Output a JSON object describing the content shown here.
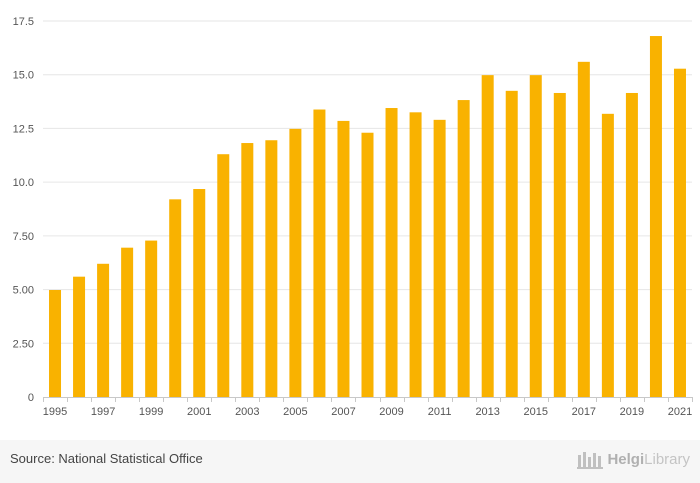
{
  "chart_data": {
    "type": "bar",
    "title": "",
    "xlabel": "",
    "ylabel": "",
    "ylim": [
      0,
      17.5
    ],
    "yticks": [
      "0",
      "2.50",
      "5.00",
      "7.50",
      "10.0",
      "12.5",
      "15.0",
      "17.5"
    ],
    "ytick_values": [
      0,
      2.5,
      5,
      7.5,
      10,
      12.5,
      15,
      17.5
    ],
    "categories": [
      "1995",
      "1996",
      "1997",
      "1998",
      "1999",
      "2000",
      "2001",
      "2002",
      "2003",
      "2004",
      "2005",
      "2006",
      "2007",
      "2008",
      "2009",
      "2010",
      "2011",
      "2012",
      "2013",
      "2014",
      "2015",
      "2016",
      "2017",
      "2018",
      "2019",
      "2020",
      "2021"
    ],
    "xtick_labels": [
      "1995",
      "1997",
      "1999",
      "2001",
      "2003",
      "2005",
      "2007",
      "2009",
      "2011",
      "2013",
      "2015",
      "2017",
      "2019",
      "2021"
    ],
    "values": [
      4.98,
      5.6,
      6.2,
      6.95,
      7.28,
      9.2,
      9.68,
      11.3,
      11.82,
      11.95,
      12.48,
      13.38,
      12.85,
      12.3,
      13.45,
      13.25,
      12.9,
      13.82,
      14.98,
      14.25,
      14.98,
      14.15,
      15.6,
      13.18,
      14.15,
      16.8,
      15.28
    ],
    "bar_color": "#f9b200",
    "grid": true
  },
  "footer": {
    "source": "Source: National Statistical Office",
    "logo_a": "Helgi",
    "logo_b": "Library"
  }
}
